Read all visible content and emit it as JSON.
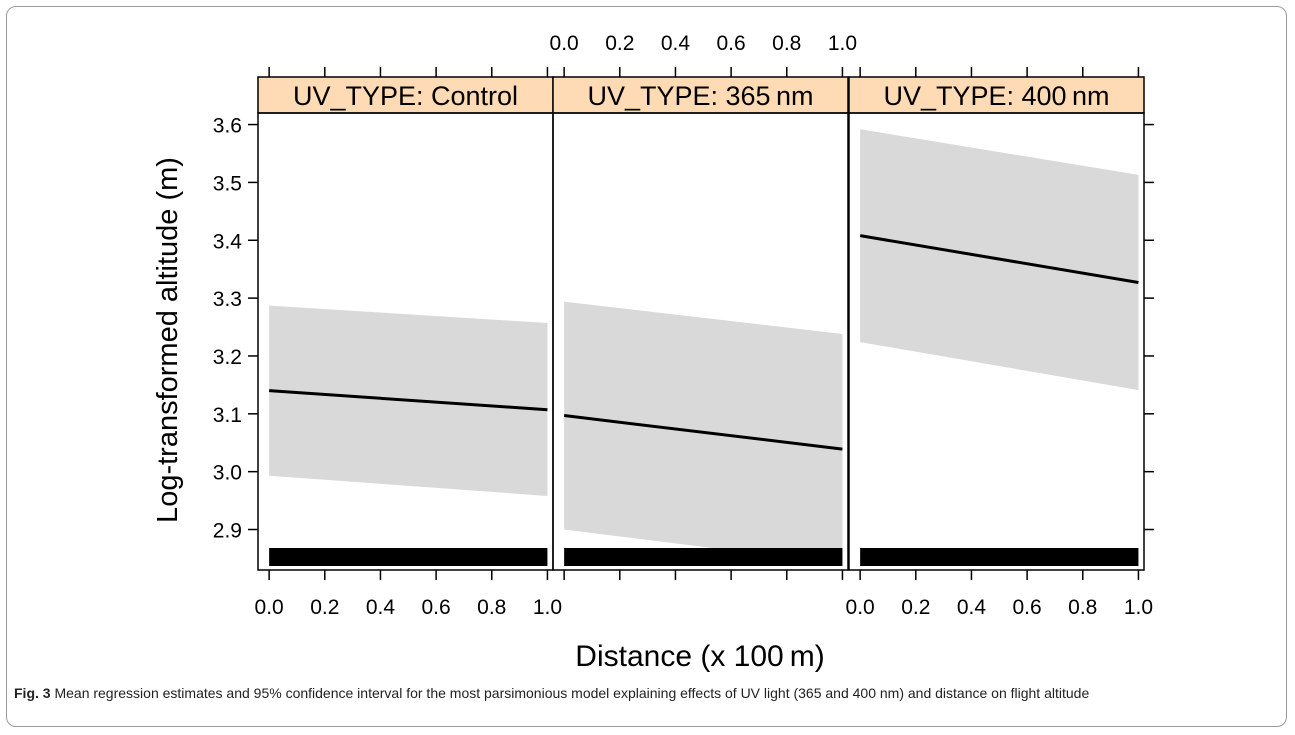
{
  "chart_data": {
    "type": "line",
    "panels": [
      {
        "strip": "UV_TYPE: Control",
        "x": [
          0.0,
          1.0
        ],
        "fit": [
          3.14,
          3.107
        ],
        "lower": [
          2.993,
          2.958
        ],
        "upper": [
          3.287,
          3.257
        ]
      },
      {
        "strip": "UV_TYPE: 365 nm",
        "x": [
          0.0,
          1.0
        ],
        "fit": [
          3.097,
          3.039
        ],
        "lower": [
          2.9,
          2.84
        ],
        "upper": [
          3.294,
          3.238
        ]
      },
      {
        "strip": "UV_TYPE: 400 nm",
        "x": [
          0.0,
          1.0
        ],
        "fit": [
          3.408,
          3.327
        ],
        "lower": [
          3.224,
          3.141
        ],
        "upper": [
          3.592,
          3.513
        ]
      }
    ],
    "xlabel": "Distance (x 100 m)",
    "ylabel": "Log-transformed altitude (m)",
    "xlim": [
      -0.04,
      1.02
    ],
    "ylim": [
      2.83,
      3.62
    ],
    "x_ticks": [
      "0.0",
      "0.2",
      "0.4",
      "0.6",
      "0.8",
      "1.0"
    ],
    "y_ticks": [
      "2.9",
      "3.0",
      "3.1",
      "3.2",
      "3.3",
      "3.4",
      "3.5",
      "3.6"
    ],
    "colors": {
      "band": "#d9d9d9",
      "line": "#000000",
      "strip": "#ffdbb5",
      "rug": "#000000"
    }
  },
  "caption": {
    "label": "Fig. 3",
    "text": "Mean regression estimates and 95% confidence interval for the most parsimonious model explaining effects of UV light (365 and 400 nm) and distance on flight altitude"
  }
}
